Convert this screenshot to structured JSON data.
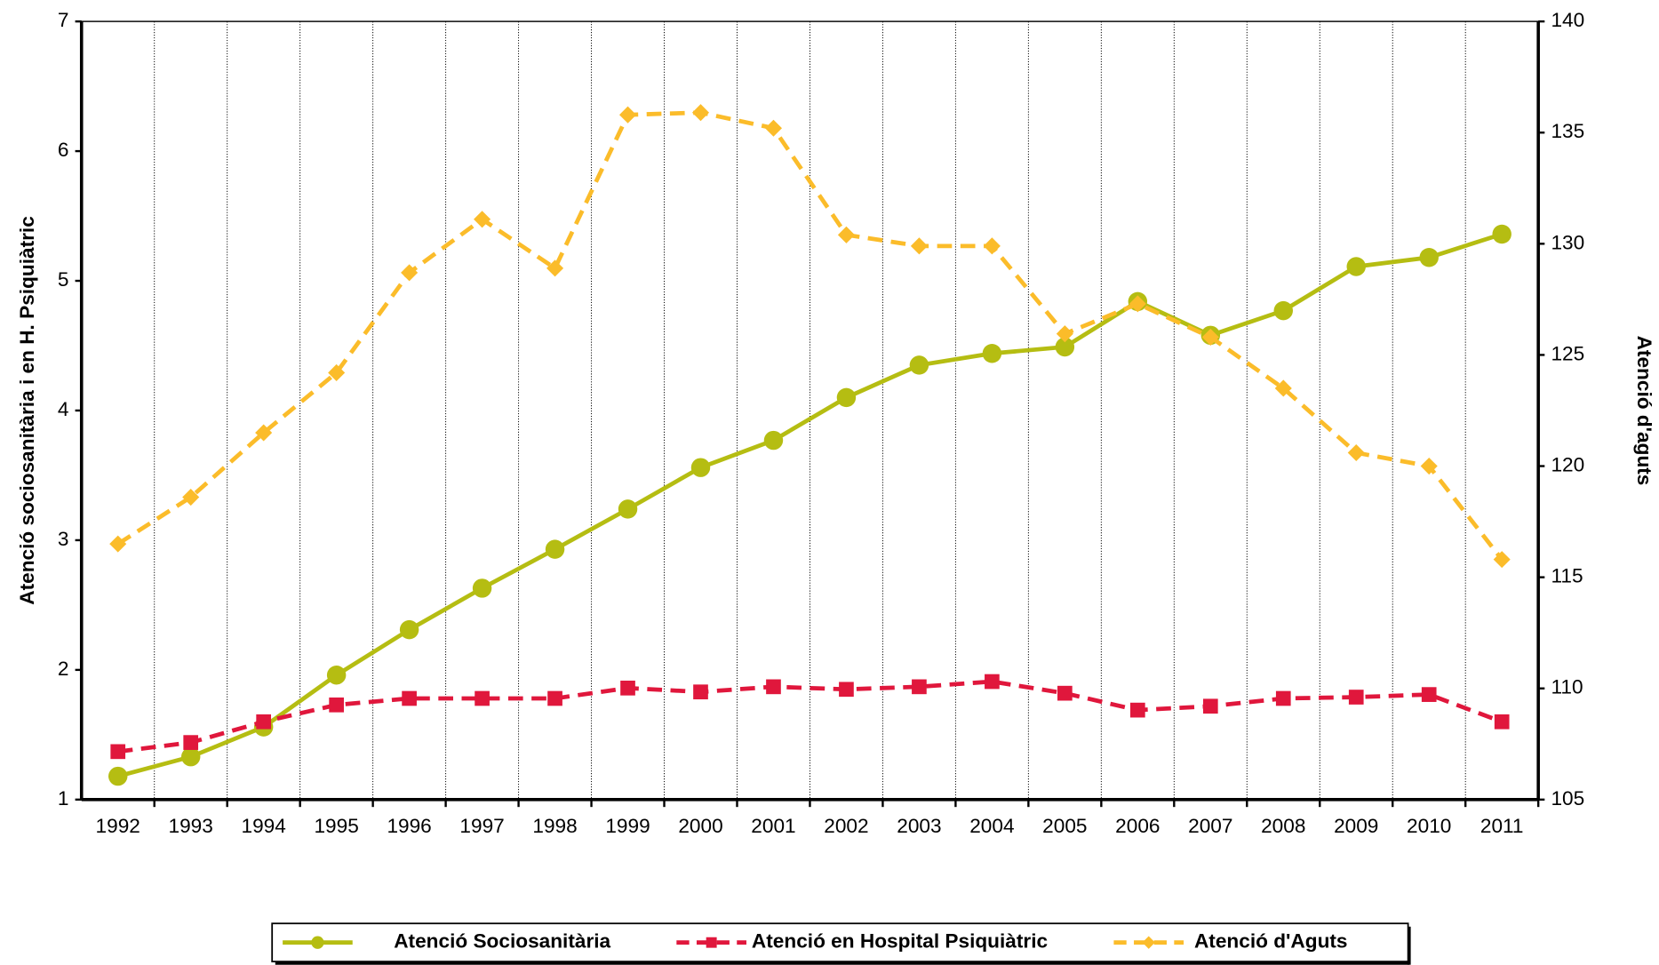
{
  "chart_data": {
    "type": "line",
    "categories": [
      "1992",
      "1993",
      "1994",
      "1995",
      "1996",
      "1997",
      "1998",
      "1999",
      "2000",
      "2001",
      "2002",
      "2003",
      "2004",
      "2005",
      "2006",
      "2007",
      "2008",
      "2009",
      "2010",
      "2011"
    ],
    "ylabel": "Atenció sociosanitària i  en H. Psiquiàtric",
    "y2label": "Atenció d'aguts",
    "ylim": [
      1,
      7
    ],
    "yticks": [
      1,
      2,
      3,
      4,
      5,
      6,
      7
    ],
    "y2lim": [
      105,
      140
    ],
    "y2ticks": [
      105,
      110,
      115,
      120,
      125,
      130,
      135,
      140
    ],
    "grid": "x",
    "legend": "bottom",
    "series": [
      {
        "name": "Atenció Sociosanitària",
        "color": "#b5bd12",
        "marker": "circle",
        "line_style": "solid",
        "values": [
          1.18,
          1.33,
          1.56,
          1.96,
          2.31,
          2.63,
          2.93,
          3.24,
          3.56,
          3.77,
          4.1,
          4.35,
          4.44,
          4.49,
          4.84,
          4.58,
          4.77,
          5.11,
          5.18,
          5.36
        ]
      },
      {
        "name": "Atenció en Hospital Psiquiàtric",
        "color": "#e0173c",
        "marker": "square",
        "line_style": "dash",
        "values": [
          1.37,
          1.44,
          1.6,
          1.73,
          1.78,
          1.78,
          1.78,
          1.86,
          1.83,
          1.87,
          1.85,
          1.87,
          1.91,
          1.82,
          1.69,
          1.72,
          1.78,
          1.79,
          1.81,
          1.6
        ]
      },
      {
        "name": "Atenció d'Aguts",
        "color": "#fbbc2a",
        "marker": "diamond",
        "line_style": "dash",
        "axis": "y2",
        "values": [
          116.5,
          118.6,
          121.5,
          124.2,
          128.7,
          131.1,
          128.9,
          135.8,
          135.9,
          135.2,
          130.4,
          129.9,
          129.9,
          125.95,
          127.3,
          125.8,
          123.5,
          120.6,
          120.0,
          115.8
        ]
      }
    ]
  }
}
